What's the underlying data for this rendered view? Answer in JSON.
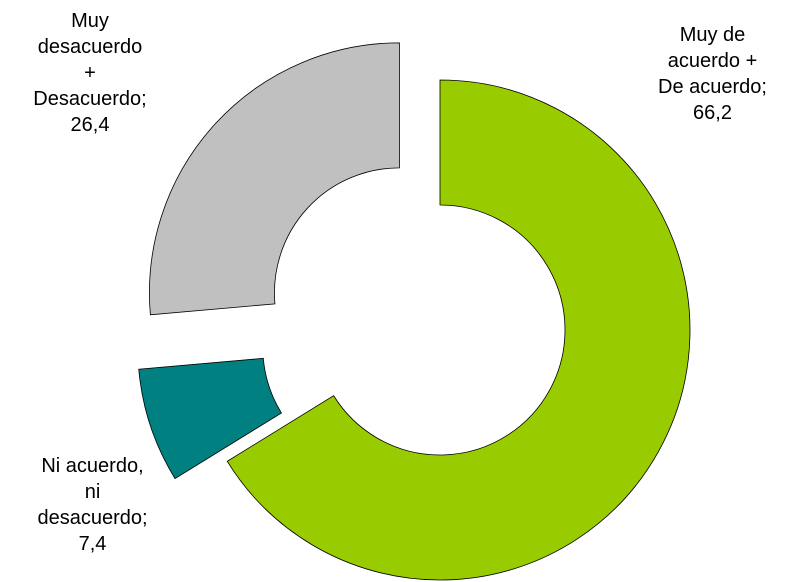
{
  "chart_data": {
    "type": "donut",
    "categories": [
      "Muy de acuerdo + De acuerdo;",
      "Ni acuerdo, ni desacuerdo;",
      "Muy desacuerdo + Desacuerdo;"
    ],
    "values": [
      66.2,
      7.4,
      26.4
    ],
    "value_labels": [
      "66,2",
      "7,4",
      "26,4"
    ],
    "colors": [
      "#99cc00",
      "#008080",
      "#c0c0c0"
    ],
    "exploded": [
      false,
      true,
      true
    ]
  }
}
